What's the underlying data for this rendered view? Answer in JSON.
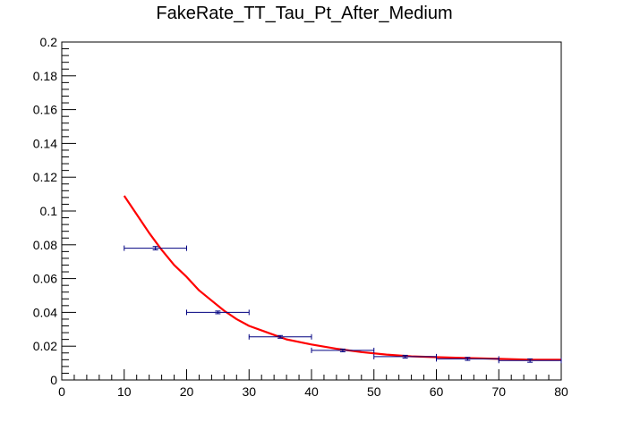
{
  "chart_data": {
    "type": "scatter",
    "title": "FakeRate_TT_Tau_Pt_After_Medium",
    "xlabel": "",
    "ylabel": "",
    "xlim": [
      0,
      80
    ],
    "ylim": [
      0,
      0.2
    ],
    "x_ticks": [
      "0",
      "10",
      "20",
      "30",
      "40",
      "50",
      "60",
      "70",
      "80"
    ],
    "y_ticks": [
      "0",
      "0.02",
      "0.04",
      "0.06",
      "0.08",
      "0.1",
      "0.12",
      "0.14",
      "0.16",
      "0.18",
      "0.2"
    ],
    "grid": false,
    "series": [
      {
        "type": "errorbar",
        "color": "#000080",
        "points": [
          {
            "x": 15,
            "x_low": 10,
            "x_high": 20,
            "y": 0.078,
            "y_err": 0.001
          },
          {
            "x": 25,
            "x_low": 20,
            "x_high": 30,
            "y": 0.04,
            "y_err": 0.0008
          },
          {
            "x": 35,
            "x_low": 30,
            "x_high": 40,
            "y": 0.0255,
            "y_err": 0.0008
          },
          {
            "x": 45,
            "x_low": 40,
            "x_high": 50,
            "y": 0.0175,
            "y_err": 0.0008
          },
          {
            "x": 55,
            "x_low": 50,
            "x_high": 60,
            "y": 0.0138,
            "y_err": 0.0008
          },
          {
            "x": 65,
            "x_low": 60,
            "x_high": 70,
            "y": 0.0125,
            "y_err": 0.0009
          },
          {
            "x": 75,
            "x_low": 70,
            "x_high": 80,
            "y": 0.0115,
            "y_err": 0.001
          }
        ]
      },
      {
        "type": "line",
        "color": "#ff0000",
        "x": [
          10,
          12,
          14,
          16,
          18,
          20,
          22,
          24,
          26,
          28,
          30,
          33,
          36,
          40,
          44,
          48,
          52,
          56,
          60,
          65,
          70,
          75,
          80
        ],
        "y": [
          0.109,
          0.098,
          0.087,
          0.077,
          0.068,
          0.061,
          0.053,
          0.047,
          0.041,
          0.036,
          0.032,
          0.028,
          0.024,
          0.021,
          0.0185,
          0.0165,
          0.015,
          0.014,
          0.0135,
          0.013,
          0.0125,
          0.012,
          0.012
        ]
      }
    ]
  }
}
